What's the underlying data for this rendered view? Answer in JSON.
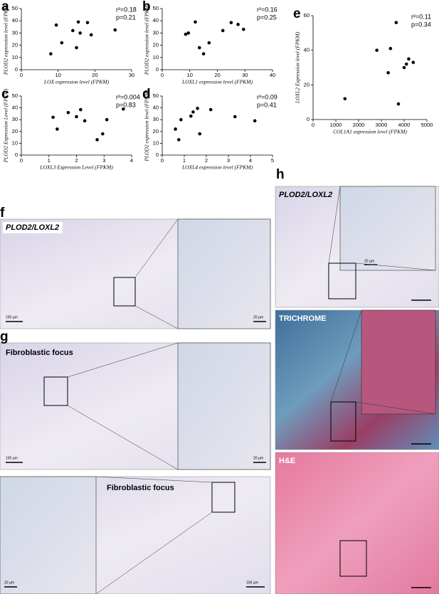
{
  "chart_data": [
    {
      "type": "scatter",
      "label": "a",
      "x_label": "LOX expression level (FPKM)",
      "y_label": "PLOD2 expression level (FPKM)",
      "annotations": [
        "r²=0.18",
        "p=0.21"
      ],
      "color": "#000000",
      "x": [
        8,
        9.5,
        11,
        14,
        15,
        15.5,
        16,
        18,
        19,
        25.5
      ],
      "values": [
        13,
        36.5,
        22,
        32,
        18,
        39,
        30,
        38.5,
        28.5,
        32.5
      ],
      "xlim": [
        0,
        30
      ],
      "xticks": [
        0,
        10,
        20,
        30
      ],
      "ylim": [
        0,
        50
      ],
      "yticks": [
        0,
        10,
        20,
        30,
        40,
        50
      ]
    },
    {
      "type": "scatter",
      "label": "b",
      "x_label": "LOXL1 expression level (FPKM)",
      "y_label": "PLOD2 expression level (FPKM)",
      "annotations": [
        "r²=0.16",
        "p=0.25"
      ],
      "color": "#000000",
      "x": [
        8.5,
        9.5,
        12,
        13.5,
        15,
        17,
        22,
        25,
        27.5,
        29.5
      ],
      "values": [
        29,
        30,
        39,
        18,
        13,
        22,
        32,
        38.5,
        37,
        33
      ],
      "xlim": [
        0,
        40
      ],
      "xticks": [
        0,
        10,
        20,
        30,
        40
      ],
      "ylim": [
        0,
        50
      ],
      "yticks": [
        0,
        10,
        20,
        30,
        40,
        50
      ]
    },
    {
      "type": "scatter",
      "label": "c",
      "x_label": "LOXL3 Expression Level (FPKM)",
      "y_label": "PLOD2 Expression Level (FPKM)",
      "annotations": [
        "r²=0.004",
        "p=0.83"
      ],
      "color": "#000000",
      "x": [
        1.15,
        1.3,
        1.7,
        2,
        2.15,
        2.3,
        2.75,
        2.95,
        3.1,
        3.7
      ],
      "values": [
        32,
        22,
        36,
        32.5,
        38.5,
        29,
        13,
        18,
        30,
        39
      ],
      "xlim": [
        0,
        4
      ],
      "xticks": [
        0,
        1,
        2,
        3,
        4
      ],
      "ylim": [
        0,
        50
      ],
      "yticks": [
        0,
        10,
        20,
        30,
        40,
        50
      ]
    },
    {
      "type": "scatter",
      "label": "d",
      "x_label": "LOXL4 expression level (FPKM)",
      "y_label": "PLOD2 expression level (FPKM)",
      "annotations": [
        "r²=0.09",
        "p=0.41"
      ],
      "color": "#000000",
      "x": [
        0.6,
        0.75,
        0.85,
        1.3,
        1.4,
        1.6,
        1.7,
        2.2,
        3.3,
        4.2
      ],
      "values": [
        22,
        13,
        30,
        33,
        36.5,
        39.5,
        18,
        38.5,
        32.5,
        29
      ],
      "xlim": [
        0,
        5
      ],
      "xticks": [
        0,
        1,
        2,
        3,
        4,
        5
      ],
      "ylim": [
        0,
        50
      ],
      "yticks": [
        0,
        10,
        20,
        30,
        40,
        50
      ]
    },
    {
      "type": "scatter",
      "label": "e",
      "x_label": "COL1A1 expression level (FPKM)",
      "y_label": "LOXL2 Expression level (FPKM)",
      "annotations": [
        "r²=0.11",
        "p=0.34"
      ],
      "color": "#000000",
      "x": [
        1400,
        2800,
        3300,
        3400,
        3650,
        3750,
        4000,
        4100,
        4200,
        4400
      ],
      "values": [
        12,
        40,
        27,
        41,
        56,
        9,
        30,
        32,
        35,
        33
      ],
      "xlim": [
        0,
        5000
      ],
      "xticks": [
        0,
        1000,
        2000,
        3000,
        4000,
        5000
      ],
      "ylim": [
        0,
        60
      ],
      "yticks": [
        0,
        20,
        40,
        60
      ]
    }
  ],
  "panels": {
    "f": {
      "label": "f",
      "caption": "PLOD2/LOXL2",
      "scale_bars": [
        "100 µm",
        "20 µm"
      ]
    },
    "g": {
      "label": "g",
      "caption": "Fibroblastic focus",
      "scale_bars": [
        "100 µm",
        "20 µm"
      ]
    },
    "g2": {
      "caption": "Fibroblastic focus",
      "scale_bars": [
        "20 µm",
        "100 µm"
      ]
    },
    "h": {
      "label": "h",
      "captions": [
        "PLOD2/LOXL2",
        "TRICHROME",
        "H&E"
      ],
      "inset_scale": "20 µm"
    }
  }
}
